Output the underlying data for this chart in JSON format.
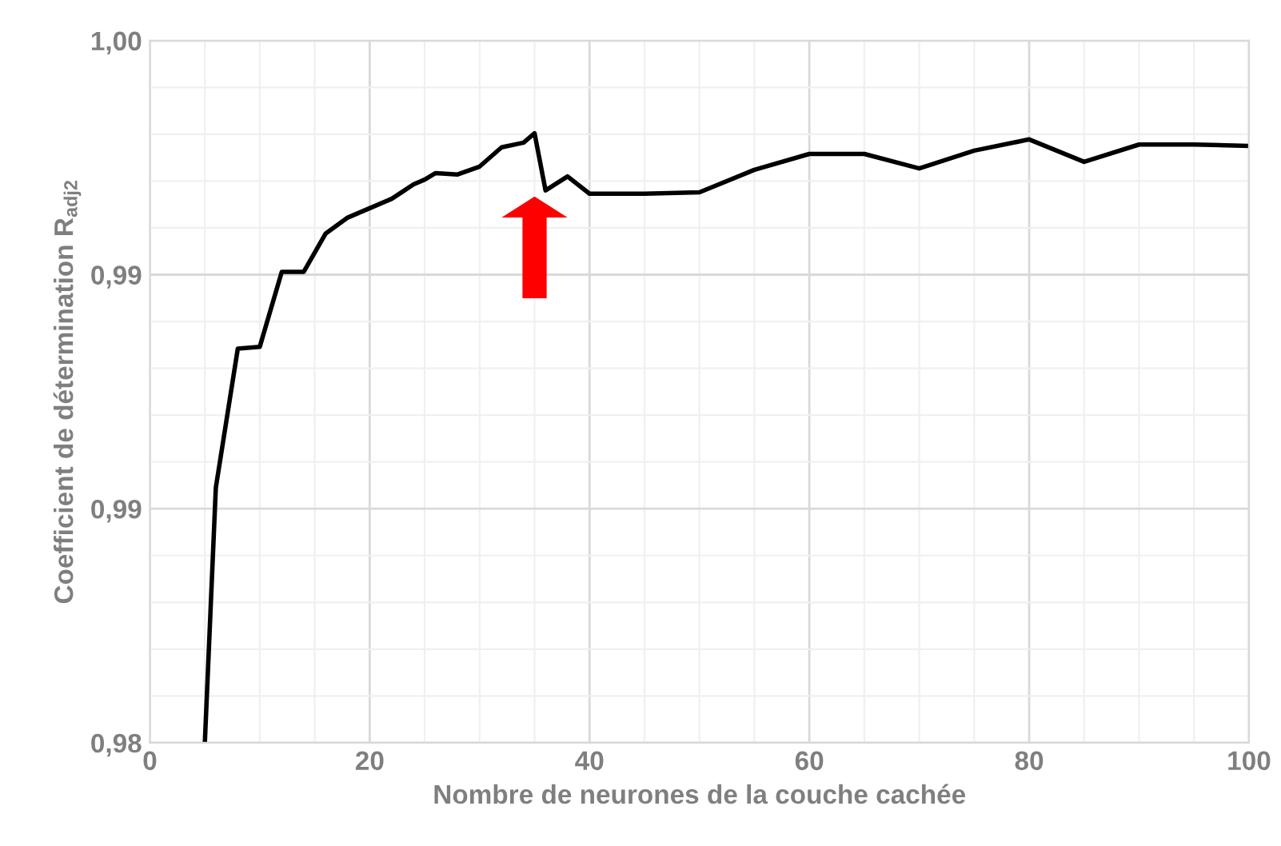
{
  "chart_data": {
    "type": "line",
    "xlabel": "Nombre de neurones de la couche cachée",
    "ylabel": "Coefficient de détermination R$_{adj2}$",
    "x": [
      5,
      6,
      8,
      10,
      12,
      14,
      16,
      18,
      20,
      22,
      24,
      25,
      26,
      28,
      30,
      32,
      34,
      35,
      36,
      38,
      40,
      45,
      50,
      55,
      60,
      65,
      70,
      75,
      80,
      85,
      90,
      95,
      100
    ],
    "series": [
      {
        "color": "#000000",
        "values": [
          0.985,
          0.99045,
          0.99342,
          0.99346,
          0.99506,
          0.99506,
          0.99588,
          0.99622,
          0.99642,
          0.99662,
          0.99693,
          0.99703,
          0.99717,
          0.99714,
          0.99731,
          0.99772,
          0.99782,
          0.99802,
          0.9968,
          0.9971,
          0.99673,
          0.99673,
          0.99676,
          0.99724,
          0.99758,
          0.99758,
          0.99727,
          0.99765,
          0.99789,
          0.99741,
          0.99778,
          0.99778,
          0.99775
        ]
      }
    ],
    "xlim": [
      0,
      100
    ],
    "xticks": [
      0,
      20,
      40,
      60,
      80,
      100
    ],
    "ylim": [
      0.985,
      1.0
    ],
    "yticks": [
      {
        "value": 0.985,
        "label": "0,98"
      },
      {
        "value": 0.99,
        "label": "0,99"
      },
      {
        "value": 0.995,
        "label": "0,99"
      },
      {
        "value": 1.0,
        "label": "1,00"
      }
    ],
    "grid": true,
    "marker": "none",
    "line_style": "solid",
    "legend": false
  }
}
